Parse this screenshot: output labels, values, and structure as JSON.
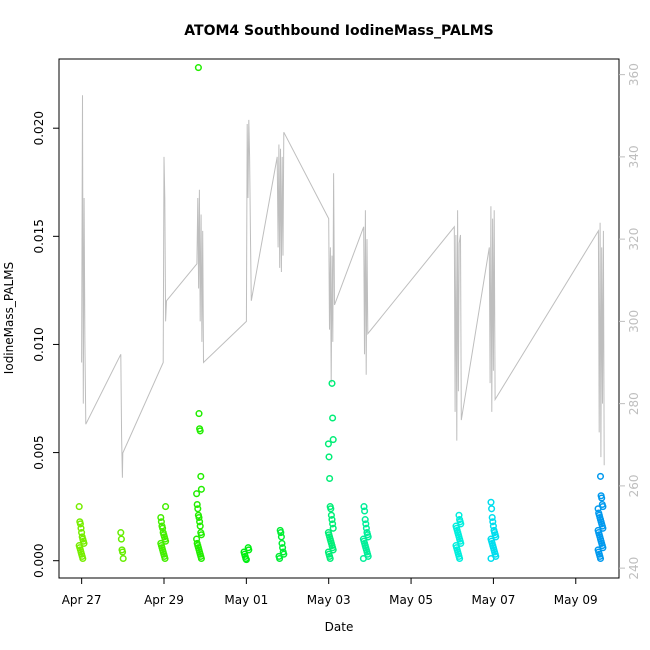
{
  "chart_data": {
    "type": "scatter",
    "title": "ATOM4 Southbound IodineMass_PALMS",
    "xlabel": "Date",
    "ylabel": "IodineMass_PALMS",
    "x_ticks": [
      "Apr 27",
      "Apr 29",
      "May 01",
      "May 03",
      "May 05",
      "May 07",
      "May 09"
    ],
    "x_tick_days": [
      0,
      2,
      4,
      6,
      8,
      10,
      12
    ],
    "xlim_days": [
      -0.55,
      13.05
    ],
    "ylim": [
      -0.0008,
      0.0232
    ],
    "y_ticks": [
      "0.000",
      "0.005",
      "0.010",
      "0.015",
      "0.020"
    ],
    "y_tick_values": [
      0,
      0.005,
      0.01,
      0.015,
      0.02
    ],
    "y2_ticks": [
      "240",
      "260",
      "280",
      "300",
      "320",
      "340",
      "360"
    ],
    "y2_tick_values": [
      240,
      260,
      280,
      300,
      320,
      340,
      360
    ],
    "y2lim": [
      237.6,
      363.8
    ],
    "line_color": "#bebebe",
    "scatter_clusters": [
      {
        "day": 0.0,
        "color": "#77ee00",
        "values": [
          0.0025,
          0.0018,
          0.0017,
          0.0015,
          0.0013,
          0.0011,
          0.001,
          0.0009,
          0.0008,
          0.0007,
          0.0006,
          0.0005,
          0.0004,
          0.0003,
          0.0002,
          0.0001
        ]
      },
      {
        "day": 0.95,
        "color": "#66ee00",
        "values": [
          0.0013,
          0.001,
          0.0005,
          0.0004,
          0.0001
        ]
      },
      {
        "day": 1.98,
        "color": "#44ee00",
        "values": [
          0.0025,
          0.002,
          0.0018,
          0.0016,
          0.0015,
          0.0013,
          0.0012,
          0.0011,
          0.001,
          0.0009,
          0.0008,
          0.0007,
          0.0006,
          0.0005,
          0.0004,
          0.0003,
          0.0002,
          0.0001
        ]
      },
      {
        "day": 2.85,
        "color": "#22ee00",
        "values": [
          0.0228,
          0.0068,
          0.0061,
          0.006,
          0.0039,
          0.0033,
          0.0031,
          0.0026,
          0.0024,
          0.0021,
          0.002,
          0.0018,
          0.0016,
          0.0013,
          0.0012,
          0.001,
          0.0008,
          0.0007,
          0.0006,
          0.0005,
          0.0004,
          0.0003,
          0.0002,
          0.0001
        ]
      },
      {
        "day": 4.0,
        "color": "#00ee11",
        "values": [
          0.0006,
          0.0005,
          0.0004,
          0.0003,
          0.0002,
          0.0001,
          5e-05
        ]
      },
      {
        "day": 4.85,
        "color": "#00ee33",
        "values": [
          0.0014,
          0.0013,
          0.0011,
          0.0008,
          0.0006,
          0.0004,
          0.0003,
          0.0002,
          0.0001
        ]
      },
      {
        "day": 6.05,
        "color": "#00ee77",
        "values": [
          0.0082,
          0.0066,
          0.0056,
          0.0054,
          0.0048,
          0.0038,
          0.0025,
          0.0024,
          0.0021,
          0.0019,
          0.0017,
          0.0015,
          0.0013,
          0.0012,
          0.0011,
          0.001,
          0.0009,
          0.0008,
          0.0007,
          0.0006,
          0.0005,
          0.0004,
          0.0003,
          0.0002,
          0.0001
        ]
      },
      {
        "day": 6.9,
        "color": "#00ee99",
        "values": [
          0.0025,
          0.0023,
          0.0019,
          0.0017,
          0.0015,
          0.0013,
          0.0012,
          0.0011,
          0.001,
          0.0009,
          0.0008,
          0.0007,
          0.0006,
          0.0005,
          0.0004,
          0.0003,
          0.0002,
          0.0001
        ]
      },
      {
        "day": 9.15,
        "color": "#00eedd",
        "values": [
          0.0021,
          0.0019,
          0.0018,
          0.0017,
          0.0016,
          0.0015,
          0.0014,
          0.0013,
          0.0012,
          0.0011,
          0.001,
          0.0009,
          0.0008,
          0.0007,
          0.0006,
          0.0005,
          0.0004,
          0.0003,
          0.0002,
          0.0001
        ]
      },
      {
        "day": 10.0,
        "color": "#00ddee",
        "values": [
          0.0027,
          0.0024,
          0.002,
          0.0018,
          0.0016,
          0.0014,
          0.0013,
          0.0012,
          0.0011,
          0.001,
          0.0009,
          0.0008,
          0.0007,
          0.0006,
          0.0005,
          0.0004,
          0.0003,
          0.0002,
          0.0001
        ]
      },
      {
        "day": 12.6,
        "color": "#0099ee",
        "values": [
          0.0039,
          0.003,
          0.0029,
          0.0026,
          0.0025,
          0.0024,
          0.0022,
          0.0021,
          0.002,
          0.0019,
          0.0018,
          0.0017,
          0.0016,
          0.0015,
          0.0014,
          0.0013,
          0.0012,
          0.0011,
          0.001,
          0.0009,
          0.0008,
          0.0007,
          0.0006,
          0.0005,
          0.0004,
          0.0003,
          0.0002,
          0.0001
        ]
      }
    ],
    "line_series": {
      "color": "#bebebe",
      "points": [
        [
          0.0,
          290
        ],
        [
          0.02,
          355
        ],
        [
          0.04,
          280
        ],
        [
          0.06,
          330
        ],
        [
          0.08,
          295
        ],
        [
          0.1,
          275
        ],
        [
          0.95,
          292
        ],
        [
          0.97,
          272
        ],
        [
          0.99,
          262
        ],
        [
          1.0,
          268
        ],
        [
          1.98,
          290
        ],
        [
          2.0,
          340
        ],
        [
          2.02,
          330
        ],
        [
          2.04,
          300
        ],
        [
          2.06,
          305
        ],
        [
          2.8,
          314
        ],
        [
          2.82,
          330
        ],
        [
          2.84,
          308
        ],
        [
          2.86,
          332
        ],
        [
          2.88,
          300
        ],
        [
          2.9,
          326
        ],
        [
          2.92,
          295
        ],
        [
          2.94,
          322
        ],
        [
          2.96,
          290
        ],
        [
          4.0,
          300
        ],
        [
          4.02,
          348
        ],
        [
          4.04,
          330
        ],
        [
          4.06,
          349
        ],
        [
          4.08,
          340
        ],
        [
          4.1,
          320
        ],
        [
          4.12,
          305
        ],
        [
          4.75,
          340
        ],
        [
          4.77,
          318
        ],
        [
          4.79,
          343
        ],
        [
          4.81,
          313
        ],
        [
          4.83,
          342
        ],
        [
          4.85,
          312
        ],
        [
          4.87,
          340
        ],
        [
          4.89,
          316
        ],
        [
          4.91,
          346
        ],
        [
          6.0,
          325
        ],
        [
          6.02,
          298
        ],
        [
          6.04,
          318
        ],
        [
          6.06,
          285
        ],
        [
          6.08,
          316
        ],
        [
          6.1,
          295
        ],
        [
          6.12,
          336
        ],
        [
          6.14,
          304
        ],
        [
          6.85,
          323
        ],
        [
          6.87,
          292
        ],
        [
          6.89,
          327
        ],
        [
          6.91,
          287
        ],
        [
          6.93,
          320
        ],
        [
          6.95,
          297
        ],
        [
          9.05,
          323
        ],
        [
          9.07,
          278
        ],
        [
          9.09,
          321
        ],
        [
          9.11,
          271
        ],
        [
          9.13,
          327
        ],
        [
          9.15,
          283
        ],
        [
          9.17,
          319
        ],
        [
          9.2,
          321
        ],
        [
          9.22,
          276
        ],
        [
          9.9,
          318
        ],
        [
          9.92,
          285
        ],
        [
          9.94,
          328
        ],
        [
          9.96,
          278
        ],
        [
          9.98,
          325
        ],
        [
          10.0,
          288
        ],
        [
          10.02,
          327
        ],
        [
          10.04,
          281
        ],
        [
          12.55,
          322
        ],
        [
          12.57,
          273
        ],
        [
          12.59,
          324
        ],
        [
          12.61,
          267
        ],
        [
          12.63,
          318
        ],
        [
          12.65,
          280
        ],
        [
          12.67,
          322
        ],
        [
          12.69,
          265
        ]
      ]
    }
  }
}
